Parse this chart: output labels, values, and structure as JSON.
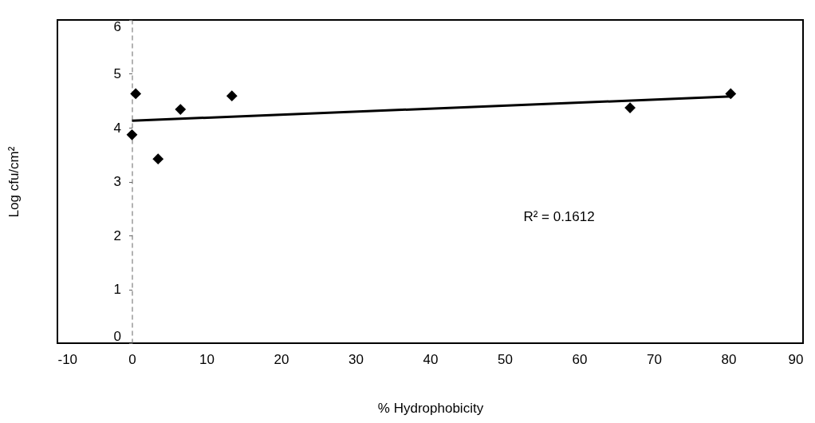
{
  "chart_data": {
    "type": "scatter",
    "xlabel": "% Hydrophobicity",
    "ylabel": "Log cfu/cm²",
    "xlim": [
      -10,
      90
    ],
    "xticks": [
      -10,
      0,
      10,
      20,
      30,
      40,
      50,
      60,
      70,
      80,
      90
    ],
    "ylim": [
      0,
      6
    ],
    "yticks": [
      0,
      1,
      2,
      3,
      4,
      5,
      6
    ],
    "marker": "diamond",
    "annotations": [
      "R² = 0.1612"
    ],
    "series": [
      {
        "type": "scatter",
        "color": "#000000",
        "x": [
          0,
          0.5,
          3.5,
          6.5,
          13.4,
          66.8,
          80.3
        ],
        "values": [
          3.87,
          4.63,
          3.42,
          4.34,
          4.59,
          4.37,
          4.63
        ]
      },
      {
        "type": "line",
        "color": "#000000",
        "marker": "none",
        "x": [
          0,
          80.5
        ],
        "values": [
          4.13,
          4.58
        ]
      }
    ]
  }
}
